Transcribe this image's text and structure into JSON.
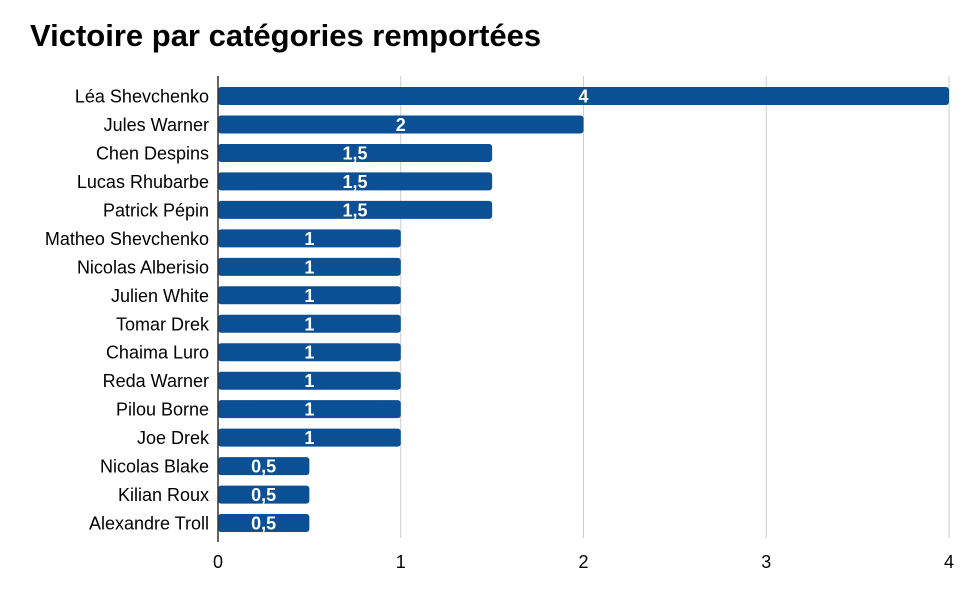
{
  "chart_data": {
    "type": "bar",
    "orientation": "horizontal",
    "title": "Victoire par catégories remportées",
    "xlabel": "",
    "ylabel": "",
    "categories": [
      "Léa Shevchenko",
      "Jules Warner",
      "Chen Despins",
      "Lucas Rhubarbe",
      "Patrick Pépin",
      "Matheo Shevchenko",
      "Nicolas Alberisio",
      "Julien White",
      "Tomar Drek",
      "Chaima Luro",
      "Reda Warner",
      "Pilou Borne",
      "Joe Drek",
      "Nicolas Blake",
      "Kilian Roux",
      "Alexandre Troll"
    ],
    "values": [
      4,
      2,
      1.5,
      1.5,
      1.5,
      1,
      1,
      1,
      1,
      1,
      1,
      1,
      1,
      0.5,
      0.5,
      0.5
    ],
    "data_labels": [
      "4",
      "2",
      "1,5",
      "1,5",
      "1,5",
      "1",
      "1",
      "1",
      "1",
      "1",
      "1",
      "1",
      "1",
      "0,5",
      "0,5",
      "0,5"
    ],
    "xlim": [
      0,
      4
    ],
    "x_ticks": [
      0,
      1,
      2,
      3,
      4
    ],
    "x_tick_labels": [
      "0",
      "1",
      "2",
      "3",
      "4"
    ],
    "grid": true,
    "legend": "none",
    "colors": {
      "bar": "#0b4f94",
      "grid": "#cccccc",
      "axis": "#333333"
    }
  }
}
